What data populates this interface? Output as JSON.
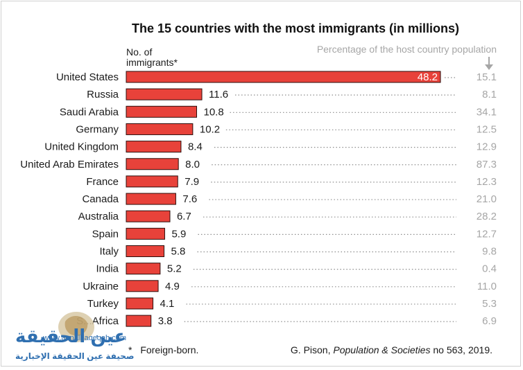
{
  "chart_data": {
    "type": "bar",
    "orientation": "horizontal",
    "title": "The 15 countries with the most immigrants (in millions)",
    "y_header": [
      "No. of",
      "immigrants*"
    ],
    "right_header": "Percentage of the host country population",
    "categories": [
      "United States",
      "Russia",
      "Saudi Arabia",
      "Germany",
      "United Kingdom",
      "United Arab Emirates",
      "France",
      "Canada",
      "Australia",
      "Spain",
      "Italy",
      "India",
      "Ukraine",
      "Turkey",
      "S...Africa"
    ],
    "values": [
      48.2,
      11.6,
      10.8,
      10.2,
      8.4,
      8.0,
      7.9,
      7.6,
      6.7,
      5.9,
      5.8,
      5.2,
      4.9,
      4.1,
      3.8
    ],
    "value_labels": [
      "48.2",
      "11.6",
      "10.8",
      "10.2",
      "8.4",
      "8.0",
      "7.9",
      "7.6",
      "6.7",
      "5.9",
      "5.8",
      "5.2",
      "4.9",
      "4.1",
      "3.8"
    ],
    "percentages": [
      "15.1",
      "8.1",
      "34.1",
      "12.5",
      "12.9",
      "87.3",
      "12.3",
      "21.0",
      "28.2",
      "12.7",
      "9.8",
      "0.4",
      "11.0",
      "5.3",
      "6.9"
    ],
    "xlim": [
      0,
      48.2
    ],
    "grid": false,
    "colors": {
      "bar": "#e8423a",
      "bar_outline": "#2a0e0c",
      "percent_text": "#a6a6a6",
      "leader": "#8c8c8c"
    }
  },
  "footnote": "Foreign-born.",
  "footnote_marker": "*",
  "source": {
    "author": "G. Pison, ",
    "publication": "Population & Societies",
    "detail": " no 563, 2019."
  },
  "watermark": {
    "logo_text": "عين الحقيقة",
    "url": "www.aenalhaqeqah.com",
    "tagline": "صحيفة عين الحقيقة الإخبارية"
  }
}
